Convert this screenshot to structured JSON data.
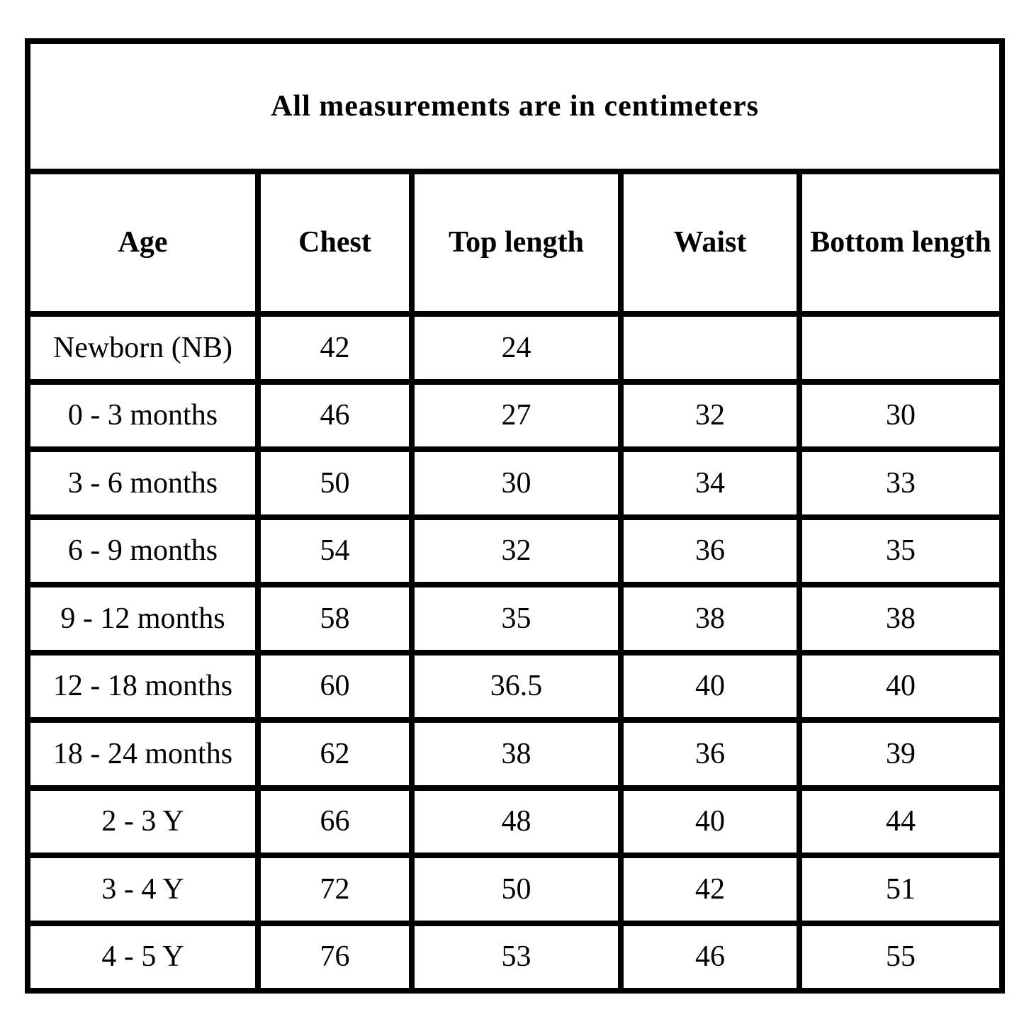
{
  "title": "All measurements are in centimeters",
  "table": {
    "columns": [
      "Age",
      "Chest",
      "Top length",
      "Waist",
      "Bottom length"
    ],
    "rows": [
      [
        "Newborn (NB)",
        "42",
        "24",
        "",
        ""
      ],
      [
        "0 - 3 months",
        "46",
        "27",
        "32",
        "30"
      ],
      [
        "3 - 6 months",
        "50",
        "30",
        "34",
        "33"
      ],
      [
        "6 - 9 months",
        "54",
        "32",
        "36",
        "35"
      ],
      [
        "9 - 12 months",
        "58",
        "35",
        "38",
        "38"
      ],
      [
        "12 - 18 months",
        "60",
        "36.5",
        "40",
        "40"
      ],
      [
        "18 - 24 months",
        "62",
        "38",
        "36",
        "39"
      ],
      [
        "2 - 3 Y",
        "66",
        "48",
        "40",
        "44"
      ],
      [
        "3 - 4 Y",
        "72",
        "50",
        "42",
        "51"
      ],
      [
        "4 - 5 Y",
        "76",
        "53",
        "46",
        "55"
      ]
    ]
  },
  "chart_data": {
    "type": "table",
    "title": "All measurements are in centimeters",
    "units": "centimeters",
    "columns": [
      "Age",
      "Chest",
      "Top length",
      "Waist",
      "Bottom length"
    ],
    "rows": [
      {
        "age": "Newborn (NB)",
        "chest": 42,
        "top_length": 24,
        "waist": null,
        "bottom_length": null
      },
      {
        "age": "0 - 3 months",
        "chest": 46,
        "top_length": 27,
        "waist": 32,
        "bottom_length": 30
      },
      {
        "age": "3 - 6 months",
        "chest": 50,
        "top_length": 30,
        "waist": 34,
        "bottom_length": 33
      },
      {
        "age": "6 - 9 months",
        "chest": 54,
        "top_length": 32,
        "waist": 36,
        "bottom_length": 35
      },
      {
        "age": "9 - 12 months",
        "chest": 58,
        "top_length": 35,
        "waist": 38,
        "bottom_length": 38
      },
      {
        "age": "12 - 18 months",
        "chest": 60,
        "top_length": 36.5,
        "waist": 40,
        "bottom_length": 40
      },
      {
        "age": "18 - 24 months",
        "chest": 62,
        "top_length": 38,
        "waist": 36,
        "bottom_length": 39
      },
      {
        "age": "2 - 3 Y",
        "chest": 66,
        "top_length": 48,
        "waist": 40,
        "bottom_length": 44
      },
      {
        "age": "3 - 4 Y",
        "chest": 72,
        "top_length": 50,
        "waist": 42,
        "bottom_length": 51
      },
      {
        "age": "4 - 5 Y",
        "chest": 76,
        "top_length": 53,
        "waist": 46,
        "bottom_length": 55
      }
    ]
  },
  "colors": {
    "border": "#000000",
    "text": "#000000",
    "background": "#ffffff"
  }
}
